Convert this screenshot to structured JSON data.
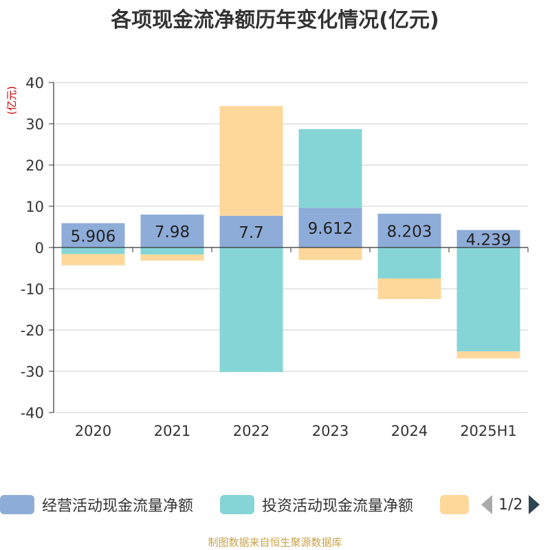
{
  "chart_data": {
    "type": "bar",
    "stacked": true,
    "title": "各项现金流净额历年变化情况(亿元)",
    "ylabel": "(亿元)",
    "xlabel": "",
    "categories": [
      "2020",
      "2021",
      "2022",
      "2023",
      "2024",
      "2025H1"
    ],
    "ylim": [
      -40,
      40
    ],
    "yticks": [
      40,
      30,
      20,
      10,
      0,
      -10,
      -20,
      -30,
      -40
    ],
    "grid": true,
    "series": [
      {
        "name": "经营活动现金流量净额",
        "color": "#8eacd8",
        "values": [
          5.906,
          7.98,
          7.7,
          9.612,
          8.203,
          4.239
        ],
        "data_labels": [
          "5.906",
          "7.98",
          "7.7",
          "9.612",
          "8.203",
          "4.239"
        ]
      },
      {
        "name": "投资活动现金流量净额",
        "color": "#86d5d6",
        "values": [
          -1.6,
          -1.7,
          -30.2,
          19.1,
          -7.5,
          -25.2
        ]
      },
      {
        "name": "",
        "color": "#fdd89a",
        "values": [
          -2.7,
          -1.5,
          26.6,
          -3.0,
          -5.0,
          -1.7
        ]
      }
    ],
    "legend": {
      "position": "bottom",
      "page": "1/2"
    }
  },
  "footer": "制图数据来自恒生聚源数据库"
}
